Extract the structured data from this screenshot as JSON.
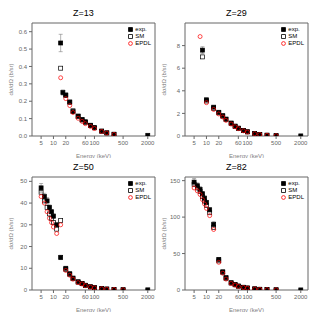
{
  "chart_data": [
    {
      "type": "scatter",
      "title": "Z=13",
      "xlabel": "Energy (keV)",
      "ylabel": "dσ/dΩ (b/sr)",
      "log": "x",
      "grid": false,
      "legend": "upper right",
      "xlim": [
        3,
        3000
      ],
      "xticks": [
        5,
        10,
        20,
        60,
        100,
        500,
        2000
      ],
      "ylim": [
        0,
        0.65
      ],
      "yticks": [
        {
          "value": 0,
          "label": "0.0"
        },
        0.1,
        0.2,
        0.3,
        0.4,
        0.5,
        0.6
      ],
      "series": [
        {
          "name": "exp.",
          "color": "black",
          "marker": "square",
          "x": [
            15,
            17,
            20,
            25,
            30,
            40,
            50,
            60,
            80,
            100,
            150,
            200,
            300,
            2000
          ],
          "values": [
            0.535,
            0.25,
            0.235,
            0.195,
            0.14,
            0.115,
            0.095,
            0.082,
            0.062,
            0.048,
            0.028,
            0.018,
            0.01,
            0.004
          ],
          "yerr": [
            0.05,
            0.015,
            0.012,
            0.01,
            0.008,
            0.006,
            0.005,
            0.004,
            0.003,
            0.003,
            0.002,
            0.001,
            0.001,
            0.001
          ]
        },
        {
          "name": "SM",
          "color": "black",
          "marker": "open_square",
          "x": [
            15,
            20,
            25,
            30,
            40,
            50,
            60,
            80,
            100,
            150,
            200,
            300
          ],
          "values": [
            0.39,
            0.235,
            0.195,
            0.145,
            0.112,
            0.092,
            0.078,
            0.06,
            0.047,
            0.028,
            0.018,
            0.01
          ]
        },
        {
          "name": "EPDL",
          "color": "red",
          "marker": "open_circle",
          "x": [
            15,
            20,
            25,
            30,
            40,
            50,
            60,
            80,
            100,
            150,
            200,
            300
          ],
          "values": [
            0.335,
            0.215,
            0.175,
            0.135,
            0.102,
            0.084,
            0.071,
            0.055,
            0.043,
            0.026,
            0.017,
            0.009
          ]
        }
      ]
    },
    {
      "type": "scatter",
      "title": "Z=29",
      "xlabel": "Energy (keV)",
      "ylabel": "dσ/dΩ (b/sr)",
      "log": "x",
      "grid": false,
      "legend": "upper right",
      "xlim": [
        3,
        3000
      ],
      "xticks": [
        5,
        10,
        20,
        60,
        100,
        500,
        2000
      ],
      "ylim": [
        0,
        10
      ],
      "yticks": [
        0,
        2,
        4,
        6,
        8
      ],
      "series": [
        {
          "name": "exp.",
          "color": "black",
          "marker": "square",
          "x": [
            8,
            10,
            15,
            20,
            25,
            30,
            40,
            50,
            60,
            80,
            100,
            150,
            200,
            300,
            500,
            2000
          ],
          "values": [
            7.6,
            3.2,
            2.55,
            2.1,
            1.8,
            1.5,
            1.15,
            0.88,
            0.7,
            0.5,
            0.38,
            0.22,
            0.14,
            0.07,
            0.03,
            0.008
          ],
          "yerr": [
            0.3,
            0.15,
            0.1,
            0.08,
            0.07,
            0.06,
            0.05,
            0.04,
            0.03,
            0.02,
            0.015,
            0.01,
            0.007,
            0.004,
            0.002,
            0.001
          ]
        },
        {
          "name": "SM",
          "color": "black",
          "marker": "open_square",
          "x": [
            8,
            10,
            15,
            20,
            25,
            30,
            40,
            50,
            60,
            80,
            100,
            150,
            200,
            300,
            500
          ],
          "values": [
            7.0,
            3.1,
            2.45,
            2.05,
            1.75,
            1.45,
            1.1,
            0.84,
            0.67,
            0.48,
            0.36,
            0.21,
            0.14,
            0.07,
            0.03
          ]
        },
        {
          "name": "EPDL",
          "color": "red",
          "marker": "open_circle",
          "x": [
            7,
            10,
            15,
            20,
            25,
            30,
            40,
            50,
            60,
            80,
            100,
            150,
            200,
            300,
            500
          ],
          "values": [
            8.8,
            2.95,
            2.35,
            1.95,
            1.68,
            1.38,
            1.06,
            0.82,
            0.65,
            0.46,
            0.35,
            0.2,
            0.13,
            0.068,
            0.028
          ]
        }
      ]
    },
    {
      "type": "scatter",
      "title": "Z=50",
      "xlabel": "Energy (keV)",
      "ylabel": "dσ/dΩ (b/sr)",
      "log": "x",
      "grid": false,
      "legend": "upper right",
      "xlim": [
        3,
        3000
      ],
      "xticks": [
        5,
        10,
        20,
        60,
        100,
        500,
        2000
      ],
      "ylim": [
        0,
        52
      ],
      "yticks": [
        0,
        10,
        20,
        30,
        40,
        50
      ],
      "series": [
        {
          "name": "exp.",
          "color": "black",
          "marker": "square",
          "x": [
            5,
            6,
            7,
            8,
            9,
            10,
            12,
            15,
            20,
            25,
            30,
            40,
            50,
            60,
            80,
            100,
            150,
            200,
            300,
            500,
            2000
          ],
          "values": [
            47,
            43,
            41,
            38,
            36,
            34,
            30,
            15,
            10,
            7.5,
            5.5,
            3.8,
            3.0,
            2.2,
            1.5,
            1.1,
            0.65,
            0.45,
            0.28,
            0.13,
            0.07
          ],
          "yerr": [
            2,
            1.5,
            1.5,
            1.2,
            1.0,
            1.0,
            0.8,
            1.0,
            0.5,
            0.4,
            0.3,
            0.2,
            0.15,
            0.12,
            0.08,
            0.06,
            0.04,
            0.03,
            0.02,
            0.01,
            0.005
          ]
        },
        {
          "name": "SM",
          "color": "black",
          "marker": "open_square",
          "x": [
            5,
            6,
            7,
            8,
            9,
            10,
            12,
            15,
            20,
            25,
            30,
            40,
            50,
            60,
            80,
            100,
            150,
            200,
            300,
            500
          ],
          "values": [
            45,
            41,
            38,
            35,
            33,
            31,
            28,
            32,
            9.5,
            7.2,
            5.2,
            3.6,
            2.9,
            2.1,
            1.45,
            1.05,
            0.62,
            0.43,
            0.26,
            0.12
          ]
        },
        {
          "name": "EPDL",
          "color": "red",
          "marker": "open_circle",
          "x": [
            5,
            6,
            7,
            8,
            9,
            10,
            12,
            15,
            20,
            25,
            30,
            40,
            50,
            60,
            80,
            100,
            150,
            200,
            300,
            500
          ],
          "values": [
            43,
            40,
            36,
            33,
            31,
            29,
            26,
            30,
            9.0,
            6.8,
            5.0,
            3.4,
            2.8,
            2.0,
            1.38,
            1.0,
            0.59,
            0.41,
            0.24,
            0.11
          ]
        }
      ]
    },
    {
      "type": "scatter",
      "title": "Z=82",
      "xlabel": "Energy (keV)",
      "ylabel": "dσ/dΩ (b/sr)",
      "log": "x",
      "grid": false,
      "legend": "upper right",
      "xlim": [
        3,
        3000
      ],
      "xticks": [
        5,
        10,
        20,
        60,
        100,
        500,
        2000
      ],
      "ylim": [
        0,
        155
      ],
      "yticks": [
        0,
        50,
        100,
        150
      ],
      "series": [
        {
          "name": "exp.",
          "color": "black",
          "marker": "square",
          "x": [
            5,
            6,
            7,
            8,
            9,
            10,
            12,
            15,
            20,
            25,
            30,
            40,
            50,
            60,
            80,
            100,
            150,
            200,
            300,
            500,
            2000
          ],
          "values": [
            148,
            143,
            138,
            132,
            126,
            120,
            110,
            90,
            42,
            25,
            17,
            10,
            7.5,
            5.5,
            3.8,
            2.8,
            1.6,
            1.0,
            0.55,
            0.28,
            0.1
          ],
          "yerr": [
            5,
            4,
            4,
            3,
            3,
            3,
            3,
            4,
            2,
            1.2,
            0.8,
            0.5,
            0.4,
            0.3,
            0.2,
            0.15,
            0.08,
            0.05,
            0.03,
            0.015,
            0.005
          ]
        },
        {
          "name": "SM",
          "color": "black",
          "marker": "open_square",
          "x": [
            5,
            6,
            7,
            8,
            9,
            10,
            12,
            15,
            20,
            25,
            30,
            40,
            50,
            60,
            80,
            100,
            150,
            200,
            300,
            500
          ],
          "values": [
            145,
            140,
            135,
            128,
            122,
            116,
            106,
            86,
            40,
            24,
            16,
            9.5,
            7.1,
            5.2,
            3.6,
            2.6,
            1.5,
            0.95,
            0.52,
            0.26
          ]
        },
        {
          "name": "EPDL",
          "color": "red",
          "marker": "open_circle",
          "x": [
            5,
            6,
            7,
            8,
            9,
            10,
            12,
            15,
            20,
            25,
            30,
            40,
            50,
            60,
            80,
            100,
            150,
            200,
            300,
            500
          ],
          "values": [
            140,
            136,
            131,
            124,
            118,
            112,
            102,
            83,
            38,
            23,
            15,
            9.0,
            6.8,
            5.0,
            3.45,
            2.5,
            1.44,
            0.92,
            0.5,
            0.25
          ]
        }
      ]
    }
  ]
}
